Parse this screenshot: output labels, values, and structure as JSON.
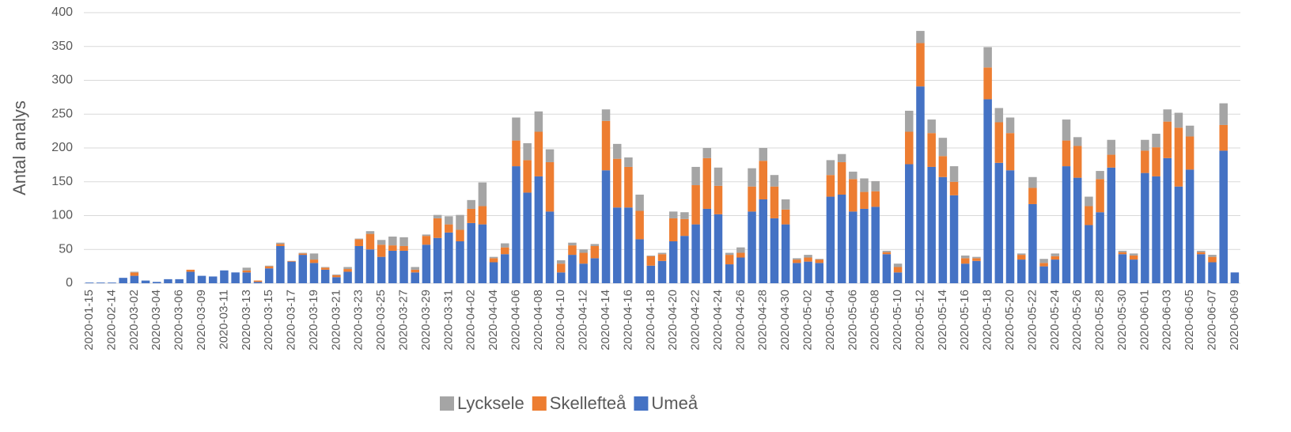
{
  "chart_data": {
    "type": "stacked_bar",
    "y_label": "Antal analys",
    "categories": [
      "2020-01-15",
      null,
      "2020-02-14",
      null,
      "2020-03-02",
      null,
      "2020-03-04",
      null,
      "2020-03-06",
      null,
      "2020-03-09",
      null,
      "2020-03-11",
      null,
      "2020-03-13",
      null,
      "2020-03-15",
      null,
      "2020-03-17",
      null,
      "2020-03-19",
      null,
      "2020-03-21",
      null,
      "2020-03-23",
      null,
      "2020-03-25",
      null,
      "2020-03-27",
      null,
      "2020-03-29",
      null,
      "2020-03-31",
      null,
      "2020-04-02",
      null,
      "2020-04-04",
      null,
      "2020-04-06",
      null,
      "2020-04-08",
      null,
      "2020-04-10",
      null,
      "2020-04-12",
      null,
      "2020-04-14",
      null,
      "2020-04-16",
      null,
      "2020-04-18",
      null,
      "2020-04-20",
      null,
      "2020-04-22",
      null,
      "2020-04-24",
      null,
      "2020-04-26",
      null,
      "2020-04-28",
      null,
      "2020-04-30",
      null,
      "2020-05-02",
      null,
      "2020-05-04",
      null,
      "2020-05-06",
      null,
      "2020-05-08",
      null,
      "2020-05-10",
      null,
      "2020-05-12",
      null,
      "2020-05-14",
      null,
      "2020-05-16",
      null,
      "2020-05-18",
      null,
      "2020-05-20",
      null,
      "2020-05-22",
      null,
      "2020-05-24",
      null,
      "2020-05-26",
      null,
      "2020-05-28",
      null,
      "2020-05-30",
      null,
      "2020-06-01",
      null,
      "2020-06-03",
      null,
      "2020-06-05",
      null,
      "2020-06-07",
      null,
      "2020-06-09"
    ],
    "series": [
      {
        "name": "Umeå",
        "color": "#4472c4",
        "values": [
          1,
          1,
          1,
          8,
          11,
          4,
          2,
          6,
          6,
          17,
          11,
          10,
          19,
          16,
          16,
          2,
          22,
          55,
          32,
          42,
          30,
          20,
          9,
          17,
          55,
          50,
          39,
          48,
          48,
          16,
          57,
          67,
          75,
          62,
          89,
          87,
          31,
          43,
          173,
          134,
          158,
          106,
          16,
          42,
          29,
          37,
          167,
          112,
          112,
          65,
          26,
          33,
          62,
          70,
          87,
          110,
          102,
          28,
          38,
          106,
          124,
          96,
          87,
          30,
          32,
          30,
          128,
          131,
          106,
          110,
          113,
          43,
          16,
          176,
          291,
          172,
          157,
          130,
          29,
          33,
          272,
          178,
          167,
          35,
          117,
          25,
          35,
          173,
          156,
          86,
          105,
          171,
          43,
          35,
          163,
          158,
          185,
          143,
          168,
          43,
          31,
          196,
          16
        ]
      },
      {
        "name": "Skellefteå",
        "color": "#ed7d31",
        "values": [
          0,
          0,
          0,
          0,
          5,
          0,
          0,
          0,
          0,
          3,
          0,
          0,
          0,
          0,
          3,
          2,
          3,
          3,
          1,
          2,
          5,
          3,
          3,
          4,
          10,
          23,
          18,
          8,
          7,
          4,
          13,
          29,
          12,
          17,
          21,
          27,
          6,
          10,
          38,
          48,
          66,
          73,
          13,
          14,
          16,
          18,
          73,
          72,
          60,
          42,
          14,
          10,
          34,
          25,
          58,
          75,
          42,
          14,
          7,
          37,
          57,
          47,
          22,
          5,
          6,
          5,
          32,
          48,
          48,
          25,
          23,
          3,
          8,
          48,
          64,
          50,
          31,
          20,
          8,
          4,
          47,
          60,
          55,
          7,
          24,
          5,
          5,
          38,
          47,
          28,
          49,
          19,
          3,
          6,
          33,
          43,
          54,
          87,
          49,
          3,
          8,
          38,
          0
        ]
      },
      {
        "name": "Lycksele",
        "color": "#a5a5a5",
        "values": [
          0,
          0,
          0,
          0,
          1,
          0,
          0,
          0,
          0,
          0,
          0,
          0,
          0,
          0,
          4,
          0,
          1,
          2,
          0,
          1,
          9,
          1,
          1,
          3,
          1,
          4,
          7,
          13,
          13,
          4,
          2,
          5,
          12,
          22,
          13,
          35,
          2,
          6,
          34,
          25,
          30,
          19,
          5,
          4,
          5,
          3,
          17,
          22,
          14,
          24,
          1,
          2,
          10,
          10,
          27,
          15,
          27,
          3,
          8,
          27,
          19,
          17,
          15,
          2,
          4,
          1,
          22,
          12,
          11,
          20,
          15,
          2,
          5,
          31,
          18,
          20,
          27,
          23,
          4,
          2,
          30,
          21,
          23,
          2,
          16,
          6,
          4,
          31,
          13,
          14,
          12,
          22,
          2,
          3,
          16,
          20,
          18,
          22,
          16,
          2,
          3,
          32,
          0
        ]
      }
    ],
    "legend_order": [
      "Lycksele",
      "Skellefteå",
      "Umeå"
    ],
    "ylim": [
      0,
      400
    ],
    "yticks": [
      0,
      50,
      100,
      150,
      200,
      250,
      300,
      350,
      400
    ],
    "grid": true,
    "legend": "bottom"
  }
}
